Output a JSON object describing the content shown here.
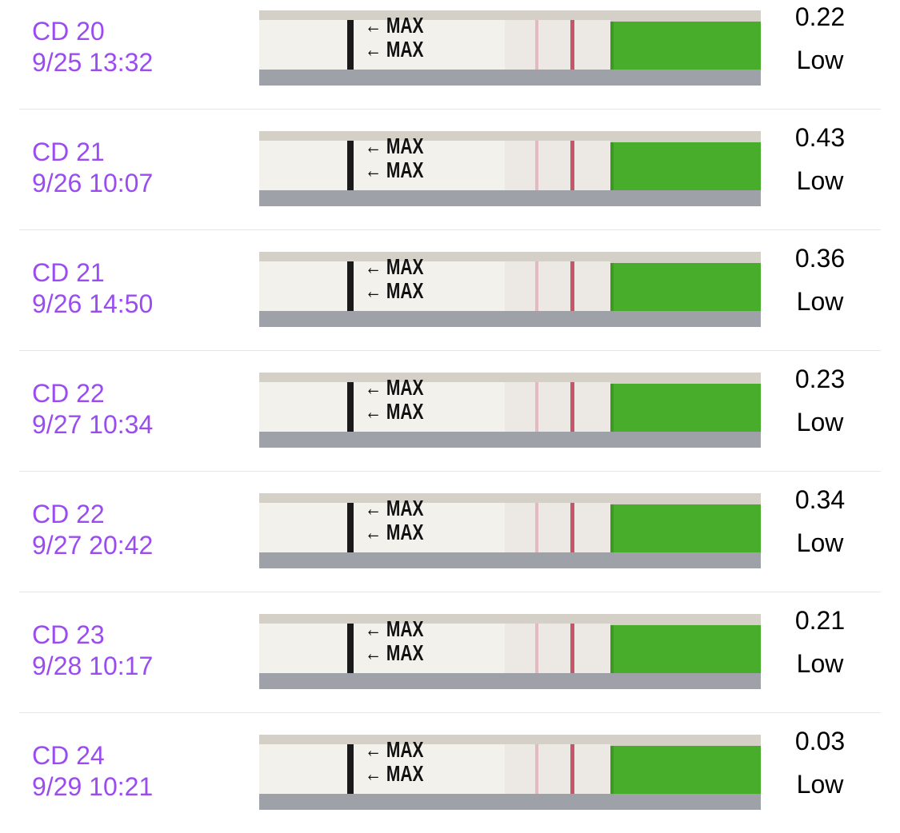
{
  "strip_label": "MAX",
  "colors": {
    "accent": "#9a4cf0",
    "strip_green": "#48ad2a",
    "test_line": "#c8566a"
  },
  "rows": [
    {
      "cycle_day": "CD 20",
      "datetime": "9/25 13:32",
      "value": "0.22",
      "level": "Low"
    },
    {
      "cycle_day": "CD 21",
      "datetime": "9/26 10:07",
      "value": "0.43",
      "level": "Low"
    },
    {
      "cycle_day": "CD 21",
      "datetime": "9/26 14:50",
      "value": "0.36",
      "level": "Low"
    },
    {
      "cycle_day": "CD 22",
      "datetime": "9/27 10:34",
      "value": "0.23",
      "level": "Low"
    },
    {
      "cycle_day": "CD 22",
      "datetime": "9/27 20:42",
      "value": "0.34",
      "level": "Low"
    },
    {
      "cycle_day": "CD 23",
      "datetime": "9/28 10:17",
      "value": "0.21",
      "level": "Low"
    },
    {
      "cycle_day": "CD 24",
      "datetime": "9/29 10:21",
      "value": "0.03",
      "level": "Low"
    }
  ]
}
